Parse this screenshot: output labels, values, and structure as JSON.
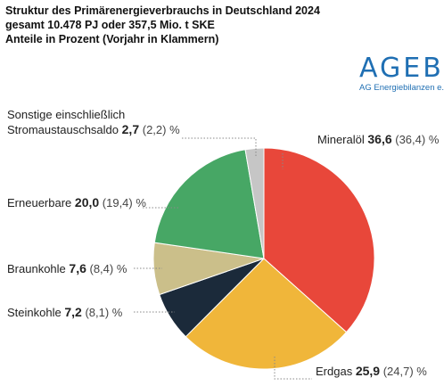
{
  "title_lines": [
    "Struktur des Primärenergieverbrauchs in Deutschland 2024",
    "gesamt 10.478 PJ oder 357,5 Mio. t SKE",
    "Anteile in Prozent (Vorjahr in Klammern)"
  ],
  "logo": {
    "main": "AGEB",
    "sub": "AG Energiebilanzen e.V.",
    "color": "#1f6fb3"
  },
  "unit": "%",
  "chart_data": {
    "type": "pie",
    "title": "Struktur des Primärenergieverbrauchs in Deutschland 2024",
    "subtitle": "gesamt 10.478 PJ oder 357,5 Mio. t SKE",
    "note": "Anteile in Prozent (Vorjahr in Klammern)",
    "slices": [
      {
        "label": "Mineralöl",
        "value": 36.6,
        "value_text": "36,6",
        "previous": "(36,4)",
        "color": "#e8473a"
      },
      {
        "label": "Erdgas",
        "value": 25.9,
        "value_text": "25,9",
        "previous": "(24,7)",
        "color": "#f0b63a"
      },
      {
        "label": "Steinkohle",
        "value": 7.2,
        "value_text": "7,2",
        "previous": "(8,1)",
        "color": "#1b2a3a"
      },
      {
        "label": "Braunkohle",
        "value": 7.6,
        "value_text": "7,6",
        "previous": "(8,4)",
        "color": "#cbbf8a"
      },
      {
        "label": "Erneuerbare",
        "value": 20.0,
        "value_text": "20,0",
        "previous": "(19,4)",
        "color": "#47a765"
      },
      {
        "label": "Sonstige einschließlich Stromaustauschsaldo",
        "label_lines": [
          "Sonstige einschließlich",
          "Stromaustauschsaldo"
        ],
        "value": 2.7,
        "value_text": "2,7",
        "previous": "(2,2)",
        "color": "#c6c6c6"
      }
    ]
  }
}
